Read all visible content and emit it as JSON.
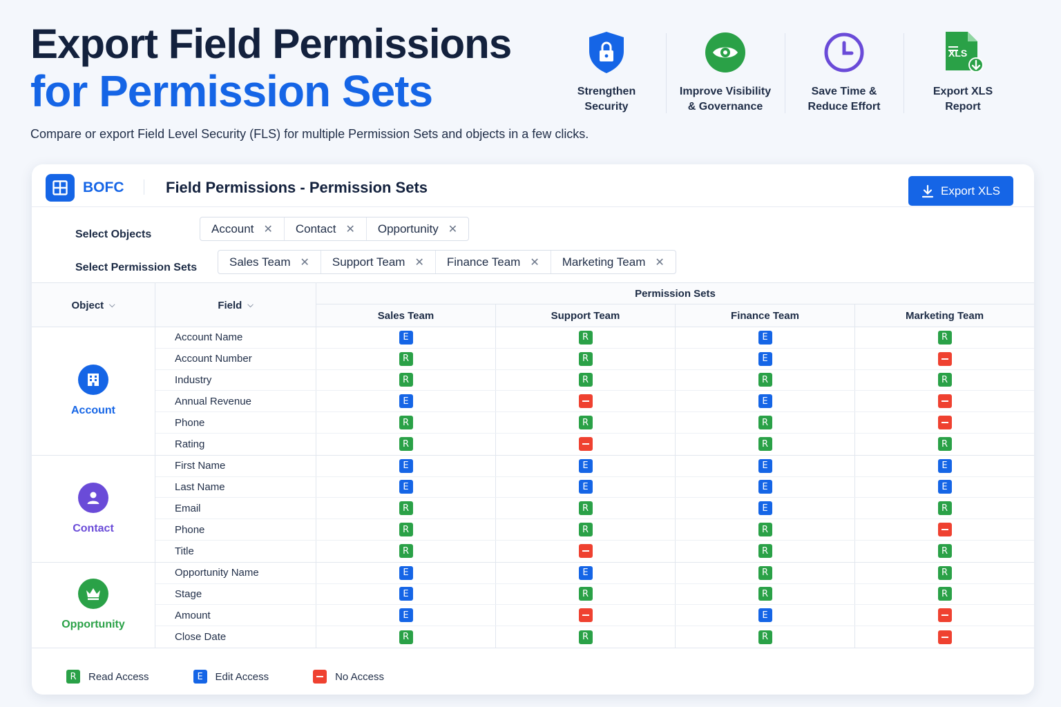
{
  "hero": {
    "title_line1": "Export Field Permissions",
    "title_line2": "for Permission Sets",
    "subtitle": "Compare or export Field Level Security (FLS) for multiple Permission Sets and objects in a few clicks."
  },
  "features": [
    {
      "icon": "shield-lock-icon",
      "label": "Strengthen\nSecurity"
    },
    {
      "icon": "eye-icon",
      "label": "Improve Visibility\n& Governance"
    },
    {
      "icon": "clock-icon",
      "label": "Save Time &\nReduce Effort"
    },
    {
      "icon": "xls-file-icon",
      "label": "Export XLS\nReport"
    }
  ],
  "card": {
    "brand": "BOFC",
    "title": "Field Permissions - Permission Sets",
    "export_label": "Export XLS"
  },
  "filters": {
    "objects_label": "Select Objects",
    "objects": [
      "Account",
      "Contact",
      "Opportunity"
    ],
    "sets_label": "Select Permission Sets",
    "sets": [
      "Sales Team",
      "Support Team",
      "Finance Team",
      "Marketing Team"
    ],
    "remove_glyph": "✕"
  },
  "table": {
    "object_header": "Object",
    "field_header": "Field",
    "group_header": "Permission Sets",
    "columns": [
      "Sales Team",
      "Support Team",
      "Finance Team",
      "Marketing Team"
    ],
    "groups": [
      {
        "object": "Account",
        "icon": "building-icon",
        "color": "#1565e6",
        "rows": [
          {
            "field": "Account Name",
            "perms": [
              "E",
              "R",
              "E",
              "R"
            ]
          },
          {
            "field": "Account Number",
            "perms": [
              "R",
              "R",
              "E",
              "N"
            ]
          },
          {
            "field": "Industry",
            "perms": [
              "R",
              "R",
              "R",
              "R"
            ]
          },
          {
            "field": "Annual Revenue",
            "perms": [
              "E",
              "N",
              "E",
              "N"
            ]
          },
          {
            "field": "Phone",
            "perms": [
              "R",
              "R",
              "R",
              "N"
            ]
          },
          {
            "field": "Rating",
            "perms": [
              "R",
              "N",
              "R",
              "R"
            ]
          }
        ]
      },
      {
        "object": "Contact",
        "icon": "person-icon",
        "color": "#6a4bd8",
        "rows": [
          {
            "field": "First Name",
            "perms": [
              "E",
              "E",
              "E",
              "E"
            ]
          },
          {
            "field": "Last Name",
            "perms": [
              "E",
              "E",
              "E",
              "E"
            ]
          },
          {
            "field": "Email",
            "perms": [
              "R",
              "R",
              "E",
              "R"
            ]
          },
          {
            "field": "Phone",
            "perms": [
              "R",
              "R",
              "R",
              "N"
            ]
          },
          {
            "field": "Title",
            "perms": [
              "R",
              "N",
              "R",
              "R"
            ]
          }
        ]
      },
      {
        "object": "Opportunity",
        "icon": "crown-icon",
        "color": "#2aa147",
        "rows": [
          {
            "field": "Opportunity Name",
            "perms": [
              "E",
              "E",
              "R",
              "R"
            ]
          },
          {
            "field": "Stage",
            "perms": [
              "E",
              "R",
              "R",
              "R"
            ]
          },
          {
            "field": "Amount",
            "perms": [
              "E",
              "N",
              "E",
              "N"
            ]
          },
          {
            "field": "Close Date",
            "perms": [
              "R",
              "R",
              "R",
              "N"
            ]
          }
        ]
      }
    ]
  },
  "legend": [
    {
      "code": "R",
      "label": "Read Access"
    },
    {
      "code": "E",
      "label": "Edit Access"
    },
    {
      "code": "N",
      "label": "No Access"
    }
  ],
  "colors": {
    "read": "#2aa147",
    "edit": "#1565e6",
    "none": "#ef4130",
    "accent": "#1565e6"
  }
}
